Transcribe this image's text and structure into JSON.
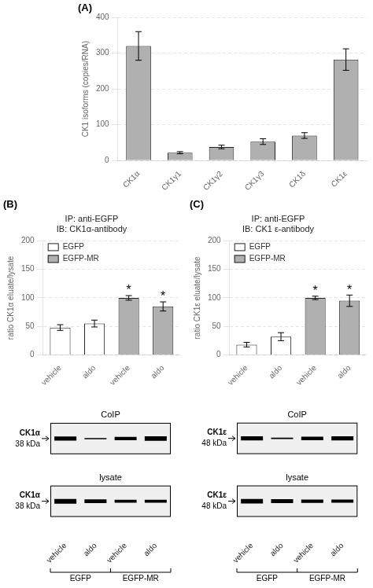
{
  "chart_data": [
    {
      "type": "bar",
      "label": "(A)",
      "categories": [
        "CK1α",
        "CK1γ1",
        "CK1γ2",
        "CK1γ3",
        "CK1δ",
        "CK1ε"
      ],
      "values": [
        320,
        22,
        38,
        53,
        70,
        282
      ],
      "errors": [
        40,
        3,
        5,
        8,
        8,
        30
      ],
      "color": "#b0b0b0",
      "ylabel": "CK1 isoforms (copies/RNA)",
      "ylim": [
        0,
        400
      ],
      "yticks": [
        0,
        100,
        200,
        300,
        400
      ],
      "grid": true
    },
    {
      "type": "bar",
      "label": "(B)",
      "title": [
        "IP: anti-EGFP",
        "IB: CK1α-antibody"
      ],
      "categories": [
        "vehicle",
        "aldo",
        "vehicle",
        "aldo"
      ],
      "series": [
        {
          "name": "EGFP",
          "color": "white",
          "values": [
            48,
            55,
            null,
            null
          ],
          "errors": [
            5,
            6,
            null,
            null
          ]
        },
        {
          "name": "EGFP-MR",
          "color": "#b0b0b0",
          "values": [
            null,
            null,
            100,
            85
          ],
          "errors": [
            null,
            null,
            4,
            8
          ]
        }
      ],
      "ylabel": "ratio CK1α eluate/lysate",
      "ylim": [
        0,
        200
      ],
      "yticks": [
        0,
        50,
        100,
        150,
        200
      ],
      "grid": true,
      "legend": "upper left",
      "annotations": [
        {
          "text": "*",
          "index": 2
        },
        {
          "text": "*",
          "index": 3
        }
      ]
    },
    {
      "type": "bar",
      "label": "(C)",
      "title": [
        "IP: anti-EGFP",
        "IB: CK1 ε-antibody"
      ],
      "categories": [
        "vehicle",
        "aldo",
        "vehicle",
        "aldo"
      ],
      "series": [
        {
          "name": "EGFP",
          "color": "white",
          "values": [
            18,
            32,
            null,
            null
          ],
          "errors": [
            4,
            7,
            null,
            null
          ]
        },
        {
          "name": "EGFP-MR",
          "color": "#b0b0b0",
          "values": [
            null,
            null,
            100,
            95
          ],
          "errors": [
            null,
            null,
            3,
            10
          ]
        }
      ],
      "ylabel": "ratio CK1ε eluate/lysate",
      "ylim": [
        0,
        200
      ],
      "yticks": [
        0,
        50,
        100,
        150,
        200
      ],
      "grid": true,
      "legend": "upper left",
      "annotations": [
        {
          "text": "*",
          "index": 2
        },
        {
          "text": "*",
          "index": 3
        }
      ]
    },
    {
      "type": "blot",
      "categories": [
        "vehicle",
        "aldo",
        "vehicle",
        "aldo"
      ],
      "groups": [
        "EGFP",
        "EGFP-MR"
      ],
      "series": [
        {
          "name": "CoIP",
          "protein": "CK1α",
          "size": "38 kDa",
          "values": [
            0.9,
            0.25,
            0.7,
            0.95
          ]
        },
        {
          "name": "lysate",
          "protein": "CK1α",
          "size": "38 kDa",
          "values": [
            1.0,
            0.8,
            0.65,
            0.6
          ]
        }
      ]
    },
    {
      "type": "blot",
      "categories": [
        "vehicle",
        "aldo",
        "vehicle",
        "aldo"
      ],
      "groups": [
        "EGFP",
        "EGFP-MR"
      ],
      "series": [
        {
          "name": "CoIP",
          "protein": "CK1ε",
          "size": "48 kDa",
          "values": [
            0.85,
            0.3,
            0.75,
            0.9
          ]
        },
        {
          "name": "lysate",
          "protein": "CK1ε",
          "size": "48 kDa",
          "values": [
            0.95,
            0.85,
            0.7,
            0.65
          ]
        }
      ]
    }
  ]
}
